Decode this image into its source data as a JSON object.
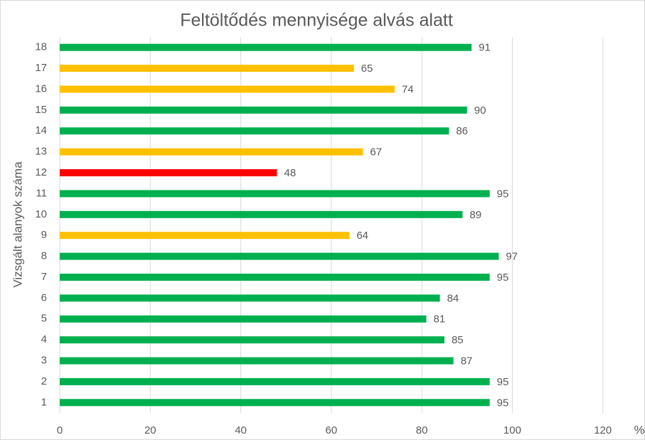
{
  "chart_data": {
    "type": "barh",
    "title": "Feltöltődés mennyisége alvás alatt",
    "y_label": "Vizsgált alanyok száma",
    "x_label": "%",
    "categories": [
      "1",
      "2",
      "3",
      "4",
      "5",
      "6",
      "7",
      "8",
      "9",
      "10",
      "11",
      "12",
      "13",
      "14",
      "15",
      "16",
      "17",
      "18"
    ],
    "values": [
      95,
      95,
      87,
      85,
      81,
      84,
      95,
      97,
      64,
      89,
      95,
      48,
      67,
      86,
      90,
      74,
      65,
      91
    ],
    "colors": [
      "#00b050",
      "#00b050",
      "#00b050",
      "#00b050",
      "#00b050",
      "#00b050",
      "#00b050",
      "#00b050",
      "#ffc000",
      "#00b050",
      "#00b050",
      "#ff0000",
      "#ffc000",
      "#00b050",
      "#00b050",
      "#ffc000",
      "#ffc000",
      "#00b050"
    ],
    "xlim": [
      0,
      129
    ],
    "xticks": [
      0,
      20,
      40,
      60,
      80,
      100,
      120
    ],
    "grid": true
  }
}
